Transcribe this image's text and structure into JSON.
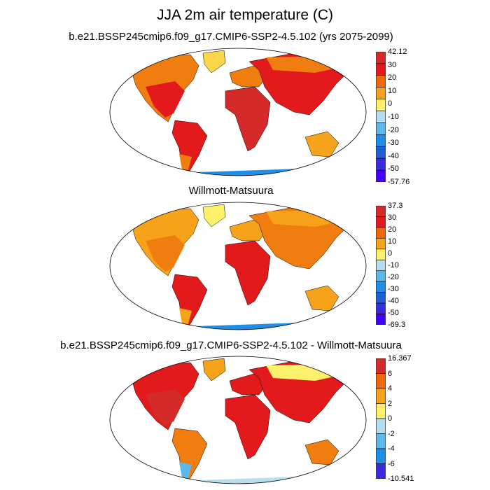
{
  "title": "JJA 2m air temperature (C)",
  "panels": [
    {
      "subtitle": "b.e21.BSSP245cmip6.f09_g17.CMIP6-SSP2-4.5.102 (yrs 2075-2099)",
      "colorbar_labels": [
        "42.12",
        "30",
        "20",
        "10",
        "0",
        "-10",
        "-20",
        "-30",
        "-40",
        "-50",
        "-57.76"
      ],
      "colorbar_colors": [
        "#d42a2a",
        "#e31a1c",
        "#f06a0a",
        "#f7a21b",
        "#fdf06a",
        "#b7ddf0",
        "#5fb8ea",
        "#1e8fe6",
        "#1f5fd6",
        "#3b2bde",
        "#4400ff"
      ]
    },
    {
      "subtitle": "Willmott-Matsuura",
      "colorbar_labels": [
        "37.3",
        "30",
        "20",
        "10",
        "0",
        "-10",
        "-20",
        "-30",
        "-40",
        "-50",
        "-69.3"
      ],
      "colorbar_colors": [
        "#d42a2a",
        "#e31a1c",
        "#f06a0a",
        "#f7a21b",
        "#fdf06a",
        "#b7ddf0",
        "#5fb8ea",
        "#1e8fe6",
        "#1f5fd6",
        "#3b2bde",
        "#4400ff"
      ]
    },
    {
      "subtitle": "b.e21.BSSP245cmip6.f09_g17.CMIP6-SSP2-4.5.102 - Willmott-Matsuura",
      "colorbar_labels": [
        "16.367",
        "6",
        "4",
        "2",
        "0",
        "-2",
        "-4",
        "-6",
        "-10.541"
      ],
      "colorbar_colors": [
        "#d42a2a",
        "#f06a0a",
        "#f7a21b",
        "#fdf06a",
        "#b7ddf0",
        "#5fb8ea",
        "#1e8fe6",
        "#3b2bde"
      ]
    }
  ]
}
